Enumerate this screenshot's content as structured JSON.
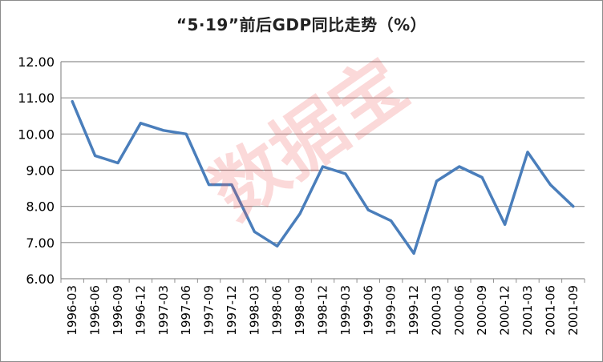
{
  "chart_data": {
    "type": "line",
    "title": "“5·19”前后GDP同比走势（%）",
    "xlabel": "",
    "ylabel": "",
    "ylim": [
      6.0,
      12.0
    ],
    "yticks": [
      "6.00",
      "7.00",
      "8.00",
      "9.00",
      "10.00",
      "11.00",
      "12.00"
    ],
    "grid": true,
    "legend": "none",
    "categories": [
      "1996-03",
      "1996-06",
      "1996-09",
      "1996-12",
      "1997-03",
      "1997-06",
      "1997-09",
      "1997-12",
      "1998-03",
      "1998-06",
      "1998-09",
      "1998-12",
      "1999-03",
      "1999-06",
      "1999-09",
      "1999-12",
      "2000-03",
      "2000-06",
      "2000-09",
      "2000-12",
      "2001-03",
      "2001-06",
      "2001-09"
    ],
    "series": [
      {
        "color": "#4a7ebb",
        "values": [
          10.9,
          9.4,
          9.2,
          10.3,
          10.1,
          10.0,
          8.6,
          8.6,
          7.3,
          6.9,
          7.8,
          9.1,
          8.9,
          7.9,
          7.6,
          6.7,
          8.7,
          9.1,
          8.8,
          7.5,
          9.5,
          8.6,
          8.0
        ]
      }
    ]
  },
  "watermark": "数据宝"
}
